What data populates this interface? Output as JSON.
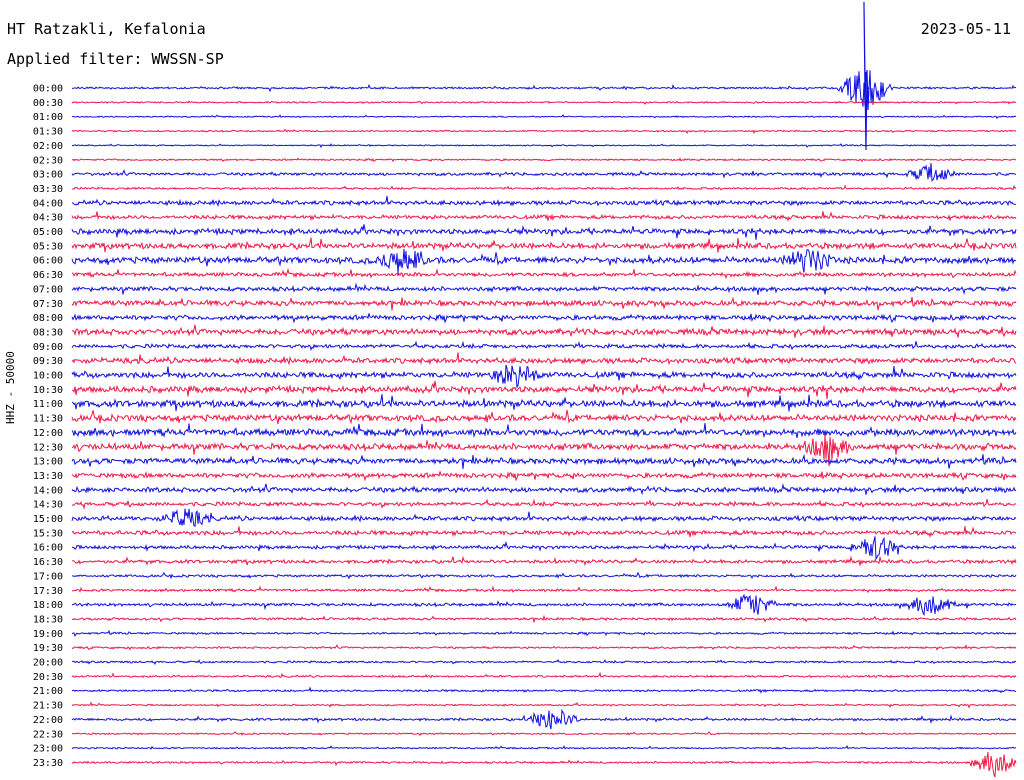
{
  "header": {
    "station": "HT Ratzakli, Kefalonia",
    "filter": "Applied filter: WWSSN-SP",
    "date": "2023-05-11",
    "channel_label": "HHZ - 50000"
  },
  "colors": {
    "trace_a": "#1010e0",
    "trace_b": "#f01848",
    "text": "#000000"
  },
  "chart_data": {
    "type": "line",
    "title": "HT Ratzakli, Kefalonia",
    "subtitle": "Applied filter: WWSSN-SP",
    "ylabel": "HHZ - 50000",
    "row_labels": [
      "00:00",
      "00:30",
      "01:00",
      "01:30",
      "02:00",
      "02:30",
      "03:00",
      "03:30",
      "04:00",
      "04:30",
      "05:00",
      "05:30",
      "06:00",
      "06:30",
      "07:00",
      "07:30",
      "08:00",
      "08:30",
      "09:00",
      "09:30",
      "10:00",
      "10:30",
      "11:00",
      "11:30",
      "12:00",
      "12:30",
      "13:00",
      "13:30",
      "14:00",
      "14:30",
      "15:00",
      "15:30",
      "16:00",
      "16:30",
      "17:00",
      "17:30",
      "18:00",
      "18:30",
      "19:00",
      "19:30",
      "20:00",
      "20:30",
      "21:00",
      "21:30",
      "22:00",
      "22:30",
      "23:00",
      "23:30"
    ],
    "row_amplitude": [
      0.8,
      0.6,
      0.5,
      0.6,
      0.5,
      0.7,
      1.2,
      0.8,
      1.8,
      1.6,
      2.2,
      2.4,
      2.6,
      1.6,
      1.8,
      2.2,
      2.0,
      2.4,
      1.6,
      2.2,
      2.4,
      2.6,
      2.8,
      2.6,
      2.8,
      2.6,
      2.4,
      2.0,
      2.0,
      1.6,
      1.8,
      1.8,
      1.4,
      1.4,
      1.0,
      1.0,
      1.2,
      1.0,
      0.8,
      0.8,
      0.8,
      0.8,
      0.8,
      0.6,
      1.0,
      0.6,
      0.6,
      0.8
    ],
    "events": [
      {
        "row": 0,
        "pos": 0.84,
        "strength": 8,
        "label": "spike"
      },
      {
        "row": 6,
        "pos": 0.91,
        "strength": 3
      },
      {
        "row": 12,
        "pos": 0.35,
        "strength": 4
      },
      {
        "row": 12,
        "pos": 0.78,
        "strength": 4
      },
      {
        "row": 20,
        "pos": 0.47,
        "strength": 4
      },
      {
        "row": 25,
        "pos": 0.8,
        "strength": 4
      },
      {
        "row": 30,
        "pos": 0.12,
        "strength": 3
      },
      {
        "row": 32,
        "pos": 0.85,
        "strength": 4
      },
      {
        "row": 36,
        "pos": 0.72,
        "strength": 4
      },
      {
        "row": 36,
        "pos": 0.91,
        "strength": 4
      },
      {
        "row": 44,
        "pos": 0.51,
        "strength": 4
      },
      {
        "row": 47,
        "pos": 0.98,
        "strength": 5
      }
    ]
  }
}
